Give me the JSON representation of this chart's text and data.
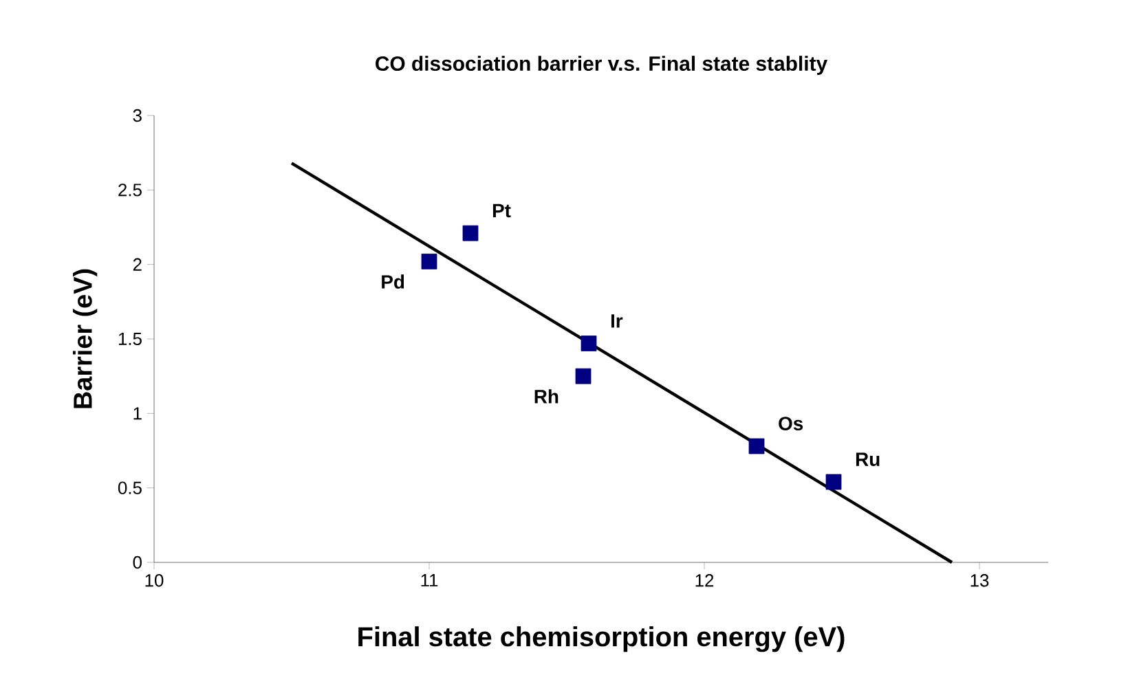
{
  "chart_data": {
    "type": "scatter",
    "title": "CO dissociation barrier v.s. Final state stablity",
    "xlabel": "Final state chemisorption energy (eV)",
    "ylabel": "Barrier (eV)",
    "xlim": [
      10,
      13.25
    ],
    "xticks": [
      10,
      11,
      12,
      13
    ],
    "ylim": [
      0,
      3
    ],
    "yticks": [
      0,
      0.5,
      1,
      1.5,
      2,
      2.5,
      3
    ],
    "grid": false,
    "marker": "square",
    "series": [
      {
        "color": "#000080",
        "x": [
          11.0,
          11.15,
          11.58,
          11.56,
          12.19,
          12.47
        ],
        "values": [
          2.02,
          2.21,
          1.47,
          1.25,
          0.78,
          0.54
        ]
      },
      {
        "type": "line",
        "color": "#000000",
        "marker": "none",
        "x": [
          10.5,
          12.9
        ],
        "values": [
          2.68,
          0
        ]
      }
    ],
    "annotations": [
      {
        "text": "Pd",
        "x": 11.0,
        "y": 2.02
      },
      {
        "text": "Pt",
        "x": 11.15,
        "y": 2.21
      },
      {
        "text": "Ir",
        "x": 11.58,
        "y": 1.47
      },
      {
        "text": "Rh",
        "x": 11.56,
        "y": 1.25
      },
      {
        "text": "Os",
        "x": 12.19,
        "y": 0.78
      },
      {
        "text": "Ru",
        "x": 12.47,
        "y": 0.54
      }
    ]
  }
}
